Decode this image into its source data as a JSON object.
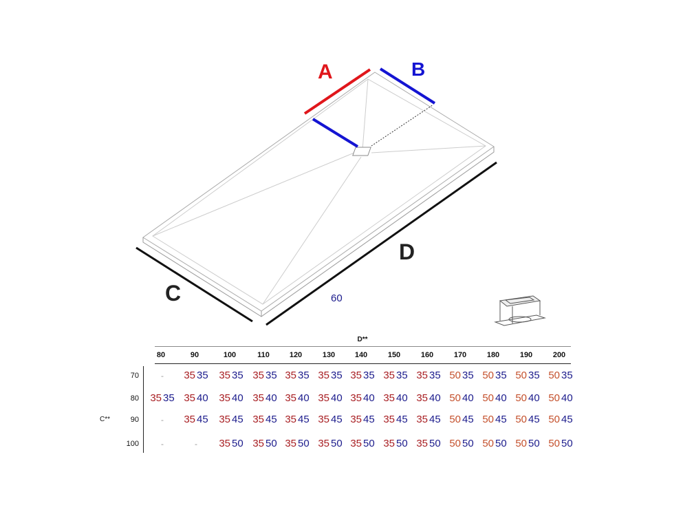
{
  "diagram": {
    "labels": {
      "a": "A",
      "b": "B",
      "c": "C",
      "d": "D",
      "width": "60"
    },
    "colors": {
      "a": "#e0161b",
      "b": "#1414d2",
      "dimension_lines": "#111111"
    }
  },
  "table": {
    "column_header": "D**",
    "row_header": "C**",
    "columns": [
      "80",
      "90",
      "100",
      "110",
      "120",
      "130",
      "140",
      "150",
      "160",
      "170",
      "180",
      "190",
      "200"
    ],
    "rows": [
      {
        "label": "70",
        "cells": [
          [
            "-",
            ""
          ],
          [
            "35",
            "35"
          ],
          [
            "35",
            "35"
          ],
          [
            "35",
            "35"
          ],
          [
            "35",
            "35"
          ],
          [
            "35",
            "35"
          ],
          [
            "35",
            "35"
          ],
          [
            "35",
            "35"
          ],
          [
            "35",
            "35"
          ],
          [
            "50",
            "35"
          ],
          [
            "50",
            "35"
          ],
          [
            "50",
            "35"
          ],
          [
            "50",
            "35"
          ]
        ]
      },
      {
        "label": "80",
        "cells": [
          [
            "35",
            "35"
          ],
          [
            "35",
            "40"
          ],
          [
            "35",
            "40"
          ],
          [
            "35",
            "40"
          ],
          [
            "35",
            "40"
          ],
          [
            "35",
            "40"
          ],
          [
            "35",
            "40"
          ],
          [
            "35",
            "40"
          ],
          [
            "35",
            "40"
          ],
          [
            "50",
            "40"
          ],
          [
            "50",
            "40"
          ],
          [
            "50",
            "40"
          ],
          [
            "50",
            "40"
          ]
        ]
      },
      {
        "label": "90",
        "cells": [
          [
            "-",
            ""
          ],
          [
            "35",
            "45"
          ],
          [
            "35",
            "45"
          ],
          [
            "35",
            "45"
          ],
          [
            "35",
            "45"
          ],
          [
            "35",
            "45"
          ],
          [
            "35",
            "45"
          ],
          [
            "35",
            "45"
          ],
          [
            "35",
            "45"
          ],
          [
            "50",
            "45"
          ],
          [
            "50",
            "45"
          ],
          [
            "50",
            "45"
          ],
          [
            "50",
            "45"
          ]
        ]
      },
      {
        "label": "100",
        "cells": [
          [
            "-",
            ""
          ],
          [
            "-",
            ""
          ],
          [
            "35",
            "50"
          ],
          [
            "35",
            "50"
          ],
          [
            "35",
            "50"
          ],
          [
            "35",
            "50"
          ],
          [
            "35",
            "50"
          ],
          [
            "35",
            "50"
          ],
          [
            "35",
            "50"
          ],
          [
            "50",
            "50"
          ],
          [
            "50",
            "50"
          ],
          [
            "50",
            "50"
          ],
          [
            "50",
            "50"
          ]
        ]
      }
    ],
    "colors": {
      "a_35": "#a81e22",
      "a_50": "#c4502c",
      "b": "#1b1b8c"
    }
  }
}
